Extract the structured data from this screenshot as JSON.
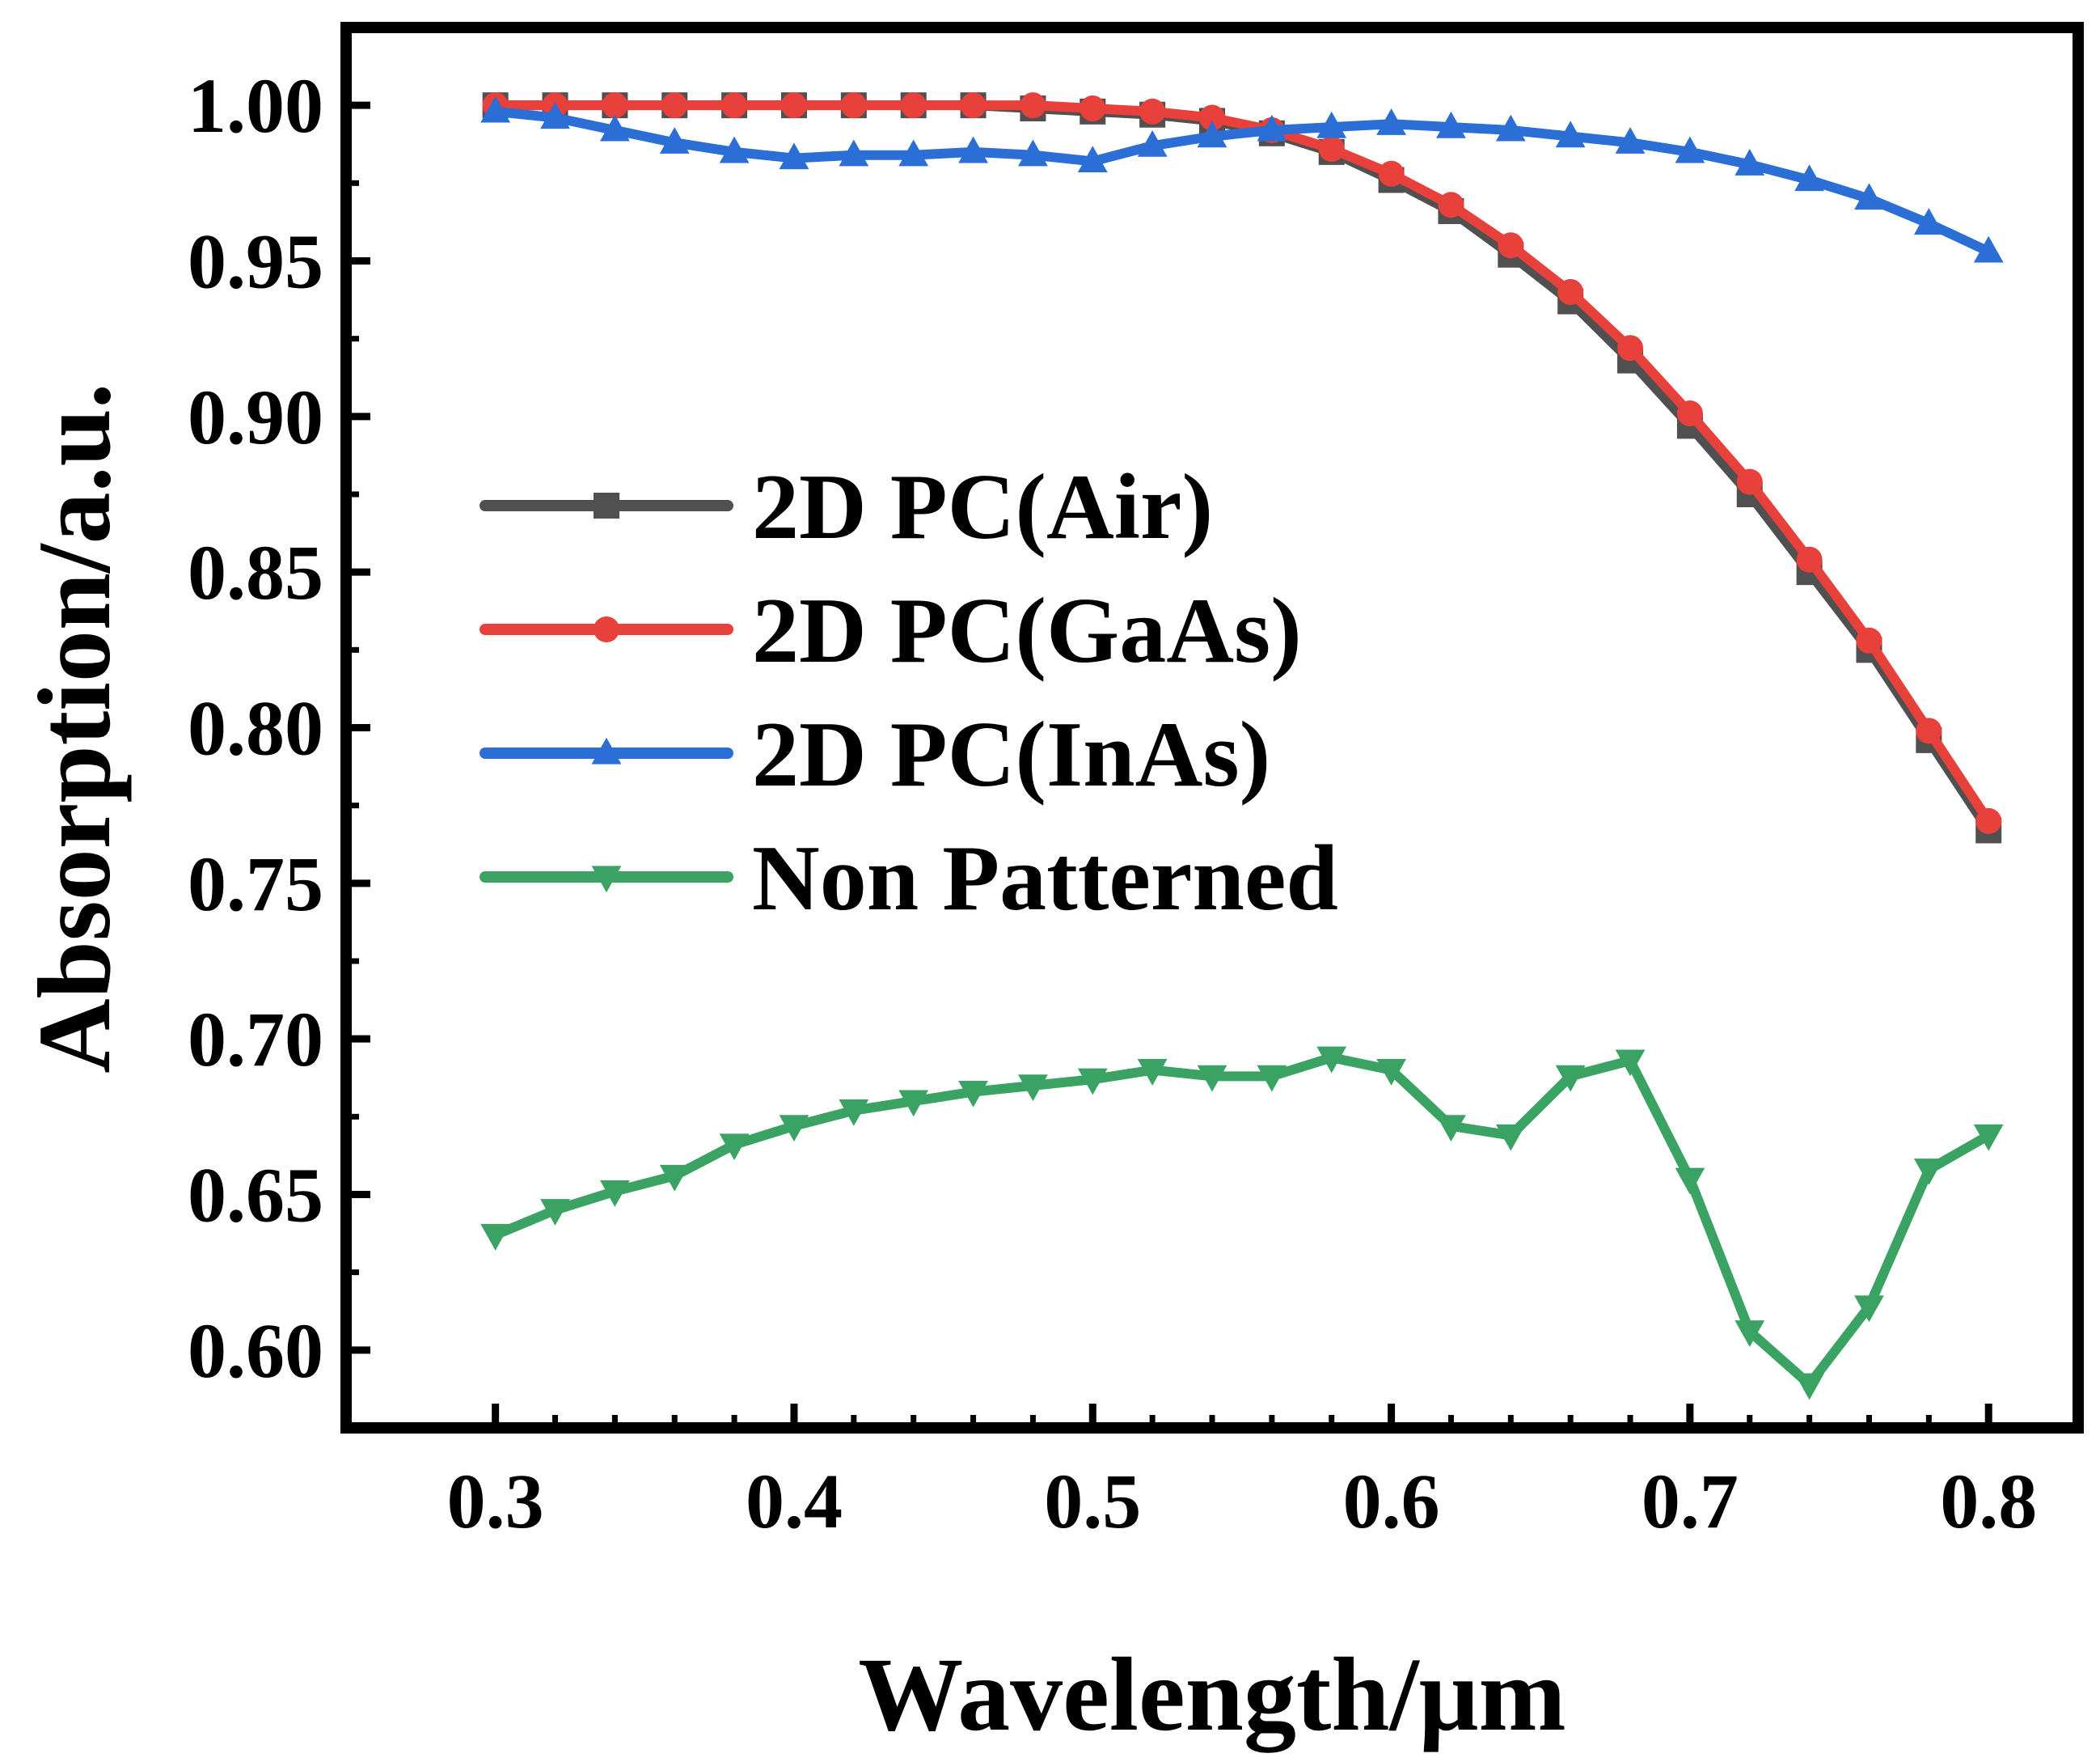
{
  "chart_data": {
    "type": "line",
    "title": "",
    "xlabel": "Wavelength/μm",
    "ylabel": "Absorption/a.u.",
    "xlim": [
      0.25,
      0.83
    ],
    "ylim": [
      0.575,
      1.025
    ],
    "x_ticks": [
      0.3,
      0.4,
      0.5,
      0.6,
      0.7,
      0.8
    ],
    "x_tick_labels": [
      "0.3",
      "0.4",
      "0.5",
      "0.6",
      "0.7",
      "0.8"
    ],
    "y_ticks": [
      0.6,
      0.65,
      0.7,
      0.75,
      0.8,
      0.85,
      0.9,
      0.95,
      1.0
    ],
    "y_tick_labels": [
      "0.60",
      "0.65",
      "0.70",
      "0.75",
      "0.80",
      "0.85",
      "0.90",
      "0.95",
      "1.00"
    ],
    "legend_position": "center-left",
    "grid": false,
    "x": [
      0.3,
      0.32,
      0.34,
      0.36,
      0.38,
      0.4,
      0.42,
      0.44,
      0.46,
      0.48,
      0.5,
      0.52,
      0.54,
      0.56,
      0.58,
      0.6,
      0.62,
      0.64,
      0.66,
      0.68,
      0.7,
      0.72,
      0.74,
      0.76,
      0.78,
      0.8
    ],
    "series": [
      {
        "name": "2D PC(Air)",
        "color": "#505050",
        "marker": "square",
        "values": [
          1.0,
          1.0,
          1.0,
          1.0,
          1.0,
          1.0,
          1.0,
          1.0,
          1.0,
          0.999,
          0.998,
          0.997,
          0.995,
          0.991,
          0.985,
          0.976,
          0.966,
          0.952,
          0.937,
          0.918,
          0.897,
          0.875,
          0.85,
          0.825,
          0.796,
          0.767
        ]
      },
      {
        "name": "2D PC(GaAs)",
        "color": "#e8403b",
        "marker": "circle",
        "values": [
          1.0,
          1.0,
          1.0,
          1.0,
          1.0,
          1.0,
          1.0,
          1.0,
          1.0,
          1.0,
          0.999,
          0.998,
          0.996,
          0.992,
          0.986,
          0.978,
          0.968,
          0.955,
          0.94,
          0.922,
          0.901,
          0.879,
          0.854,
          0.828,
          0.799,
          0.77
        ]
      },
      {
        "name": "2D PC(InAs)",
        "color": "#2b6ed6",
        "marker": "triangle-up",
        "values": [
          0.998,
          0.996,
          0.992,
          0.988,
          0.985,
          0.983,
          0.984,
          0.984,
          0.985,
          0.984,
          0.982,
          0.987,
          0.99,
          0.992,
          0.993,
          0.994,
          0.993,
          0.992,
          0.99,
          0.988,
          0.985,
          0.981,
          0.976,
          0.97,
          0.962,
          0.953
        ]
      },
      {
        "name": "Non Patterned",
        "color": "#3aa363",
        "marker": "triangle-down",
        "values": [
          0.637,
          0.645,
          0.651,
          0.656,
          0.666,
          0.672,
          0.677,
          0.68,
          0.683,
          0.685,
          0.687,
          0.69,
          0.688,
          0.688,
          0.694,
          0.69,
          0.672,
          0.669,
          0.688,
          0.693,
          0.655,
          0.606,
          0.589,
          0.614,
          0.658,
          0.669
        ]
      }
    ]
  }
}
